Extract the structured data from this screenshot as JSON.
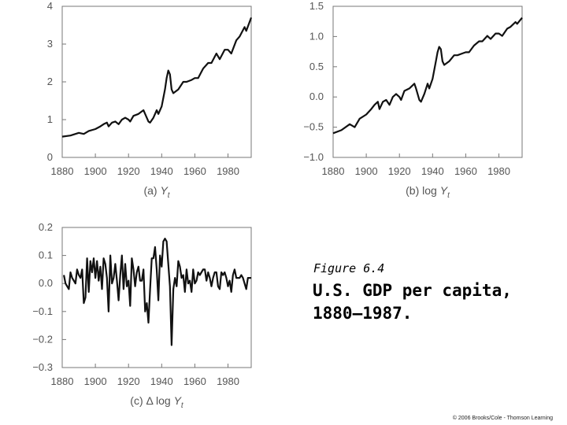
{
  "figure": {
    "label": "Figure 6.4",
    "title": "U.S. GDP per capita, 1880–1987.",
    "copyright": "© 2006 Brooks/Cole - Thomson Learning"
  },
  "chart_data": [
    {
      "id": "a",
      "type": "line",
      "caption_prefix": "(a) ",
      "caption_symbol": "Y",
      "caption_sub": "t",
      "xlim": [
        1880,
        1994
      ],
      "ylim": [
        0,
        4
      ],
      "xticks": [
        1880,
        1900,
        1920,
        1940,
        1960,
        1980
      ],
      "xtick_labels": [
        "1880",
        "1900",
        "1920",
        "1940",
        "1960",
        "1980"
      ],
      "yticks": [
        0,
        1,
        2,
        3,
        4
      ],
      "ytick_labels": [
        "0",
        "1",
        "2",
        "3",
        "4"
      ],
      "x": [
        1880,
        1885,
        1890,
        1893,
        1896,
        1900,
        1903,
        1905,
        1907,
        1908,
        1910,
        1912,
        1914,
        1916,
        1918,
        1920,
        1921,
        1923,
        1926,
        1929,
        1930,
        1932,
        1933,
        1935,
        1937,
        1938,
        1940,
        1942,
        1943,
        1944,
        1945,
        1946,
        1947,
        1950,
        1953,
        1955,
        1958,
        1960,
        1962,
        1965,
        1968,
        1970,
        1973,
        1975,
        1978,
        1980,
        1982,
        1985,
        1987,
        1990,
        1991,
        1994
      ],
      "values": [
        0.55,
        0.58,
        0.65,
        0.62,
        0.7,
        0.75,
        0.82,
        0.88,
        0.92,
        0.82,
        0.92,
        0.95,
        0.88,
        1.0,
        1.05,
        1.0,
        0.95,
        1.1,
        1.15,
        1.25,
        1.15,
        0.95,
        0.92,
        1.05,
        1.25,
        1.15,
        1.35,
        1.8,
        2.1,
        2.3,
        2.2,
        1.8,
        1.7,
        1.8,
        2.0,
        2.0,
        2.05,
        2.1,
        2.1,
        2.35,
        2.5,
        2.5,
        2.75,
        2.6,
        2.85,
        2.85,
        2.75,
        3.1,
        3.2,
        3.45,
        3.35,
        3.7
      ]
    },
    {
      "id": "b",
      "type": "line",
      "caption_prefix": "(b) log ",
      "caption_symbol": "Y",
      "caption_sub": "t",
      "xlim": [
        1880,
        1994
      ],
      "ylim": [
        -1.0,
        1.5
      ],
      "xticks": [
        1880,
        1900,
        1920,
        1940,
        1960,
        1980
      ],
      "xtick_labels": [
        "1880",
        "1900",
        "1920",
        "1940",
        "1960",
        "1980"
      ],
      "yticks": [
        -1.0,
        -0.5,
        0.0,
        0.5,
        1.0,
        1.5
      ],
      "ytick_labels": [
        "−1.0",
        "−0.5",
        "0.0",
        "0.5",
        "1.0",
        "1.5"
      ],
      "x": [
        1880,
        1885,
        1890,
        1893,
        1896,
        1900,
        1903,
        1905,
        1907,
        1908,
        1910,
        1912,
        1914,
        1916,
        1918,
        1920,
        1921,
        1923,
        1926,
        1929,
        1930,
        1932,
        1933,
        1935,
        1937,
        1938,
        1940,
        1942,
        1943,
        1944,
        1945,
        1946,
        1947,
        1950,
        1953,
        1955,
        1958,
        1960,
        1962,
        1965,
        1968,
        1970,
        1973,
        1975,
        1978,
        1980,
        1982,
        1985,
        1987,
        1990,
        1991,
        1994
      ],
      "values": [
        -0.6,
        -0.55,
        -0.45,
        -0.5,
        -0.36,
        -0.29,
        -0.2,
        -0.13,
        -0.08,
        -0.2,
        -0.08,
        -0.05,
        -0.13,
        0.0,
        0.05,
        0.0,
        -0.05,
        0.1,
        0.14,
        0.22,
        0.14,
        -0.05,
        -0.08,
        0.05,
        0.22,
        0.14,
        0.3,
        0.59,
        0.74,
        0.83,
        0.79,
        0.59,
        0.53,
        0.59,
        0.69,
        0.69,
        0.72,
        0.74,
        0.74,
        0.85,
        0.92,
        0.92,
        1.01,
        0.96,
        1.05,
        1.05,
        1.01,
        1.13,
        1.16,
        1.24,
        1.21,
        1.31
      ]
    },
    {
      "id": "c",
      "type": "line",
      "caption_prefix": "(c) Δ log ",
      "caption_symbol": "Y",
      "caption_sub": "t",
      "xlim": [
        1880,
        1994
      ],
      "ylim": [
        -0.3,
        0.2
      ],
      "xticks": [
        1880,
        1900,
        1920,
        1940,
        1960,
        1980
      ],
      "xtick_labels": [
        "1880",
        "1900",
        "1920",
        "1940",
        "1960",
        "1980"
      ],
      "yticks": [
        -0.3,
        -0.2,
        -0.1,
        0.0,
        0.1,
        0.2
      ],
      "ytick_labels": [
        "−0.3",
        "−0.2",
        "−0.1",
        "0.0",
        "0.1",
        "0.2"
      ],
      "x": [
        1881,
        1882,
        1883,
        1884,
        1885,
        1886,
        1887,
        1888,
        1889,
        1890,
        1891,
        1892,
        1893,
        1894,
        1895,
        1896,
        1897,
        1898,
        1899,
        1900,
        1901,
        1902,
        1903,
        1904,
        1905,
        1906,
        1907,
        1908,
        1909,
        1910,
        1911,
        1912,
        1913,
        1914,
        1915,
        1916,
        1917,
        1918,
        1919,
        1920,
        1921,
        1922,
        1923,
        1924,
        1925,
        1926,
        1927,
        1928,
        1929,
        1930,
        1931,
        1932,
        1933,
        1934,
        1935,
        1936,
        1937,
        1938,
        1939,
        1940,
        1941,
        1942,
        1943,
        1944,
        1945,
        1946,
        1947,
        1948,
        1949,
        1950,
        1951,
        1952,
        1953,
        1954,
        1955,
        1956,
        1957,
        1958,
        1959,
        1960,
        1961,
        1962,
        1963,
        1964,
        1965,
        1966,
        1967,
        1968,
        1969,
        1970,
        1971,
        1972,
        1973,
        1974,
        1975,
        1976,
        1977,
        1978,
        1979,
        1980,
        1981,
        1982,
        1983,
        1984,
        1985,
        1986,
        1987,
        1988,
        1989,
        1990,
        1991,
        1992,
        1993,
        1994
      ],
      "values": [
        0.03,
        0.0,
        -0.01,
        -0.02,
        0.04,
        0.02,
        0.01,
        0.0,
        0.05,
        0.03,
        0.02,
        0.05,
        -0.07,
        -0.05,
        0.09,
        -0.03,
        0.08,
        0.04,
        0.09,
        0.02,
        0.08,
        0.01,
        0.06,
        -0.02,
        0.09,
        0.07,
        0.02,
        -0.1,
        0.1,
        0.0,
        0.02,
        0.07,
        0.01,
        -0.06,
        0.03,
        0.1,
        -0.02,
        0.07,
        -0.01,
        0.01,
        -0.08,
        0.09,
        0.05,
        -0.01,
        0.04,
        0.06,
        0.01,
        0.01,
        0.05,
        -0.1,
        -0.07,
        -0.14,
        -0.02,
        0.09,
        0.09,
        0.13,
        0.05,
        -0.06,
        0.1,
        0.06,
        0.15,
        0.16,
        0.15,
        0.07,
        -0.01,
        -0.22,
        -0.02,
        0.02,
        -0.01,
        0.08,
        0.06,
        0.02,
        0.03,
        -0.03,
        0.05,
        0.0,
        0.01,
        -0.03,
        0.05,
        0.0,
        0.01,
        0.04,
        0.03,
        0.04,
        0.05,
        0.05,
        0.01,
        0.04,
        0.02,
        -0.01,
        0.02,
        0.04,
        0.04,
        -0.01,
        -0.02,
        0.04,
        0.03,
        0.04,
        0.02,
        -0.01,
        0.01,
        -0.03,
        0.03,
        0.05,
        0.02,
        0.02,
        0.02,
        0.03,
        0.02,
        0.0,
        -0.02,
        0.02,
        0.02,
        0.02
      ]
    }
  ]
}
